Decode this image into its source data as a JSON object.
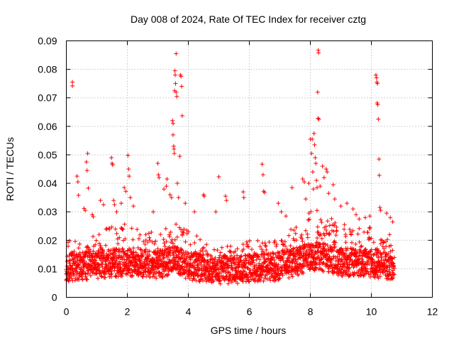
{
  "chart_data": {
    "type": "scatter",
    "title": "Day 008 of 2024, Rate Of TEC Index for receiver cztg",
    "xlabel": "GPS time / hours",
    "ylabel": "ROTI / TECUs",
    "xlim": [
      0,
      12
    ],
    "ylim": [
      0,
      0.09
    ],
    "xticks": [
      0,
      2,
      4,
      6,
      8,
      10,
      12
    ],
    "xtick_labels": [
      "0",
      "2",
      "4",
      "6",
      "8",
      "10",
      "12"
    ],
    "yticks": [
      0,
      0.01,
      0.02,
      0.03,
      0.04,
      0.05,
      0.06,
      0.07,
      0.08,
      0.09
    ],
    "ytick_labels": [
      "0",
      "0.01",
      "0.02",
      "0.03",
      "0.04",
      "0.05",
      "0.06",
      "0.07",
      "0.08",
      "0.09"
    ],
    "grid": true,
    "marker": "+",
    "color": "#ff0000",
    "series": [
      {
        "name": "ROTI",
        "points": [
          [
            0.2,
            0.0755
          ],
          [
            0.2,
            0.0742
          ],
          [
            0.35,
            0.0425
          ],
          [
            0.38,
            0.0405
          ],
          [
            0.4,
            0.0358
          ],
          [
            0.58,
            0.0312
          ],
          [
            0.62,
            0.0305
          ],
          [
            0.66,
            0.0475
          ],
          [
            0.68,
            0.0445
          ],
          [
            0.7,
            0.0505
          ],
          [
            0.72,
            0.0383
          ],
          [
            0.85,
            0.029
          ],
          [
            0.88,
            0.0283
          ],
          [
            1.12,
            0.034
          ],
          [
            1.22,
            0.0325
          ],
          [
            1.48,
            0.049
          ],
          [
            1.5,
            0.047
          ],
          [
            1.52,
            0.0465
          ],
          [
            1.55,
            0.034
          ],
          [
            1.58,
            0.0325
          ],
          [
            1.65,
            0.03
          ],
          [
            1.8,
            0.033
          ],
          [
            1.9,
            0.0385
          ],
          [
            1.95,
            0.0372
          ],
          [
            2.02,
            0.0498
          ],
          [
            2.04,
            0.045
          ],
          [
            2.06,
            0.0425
          ],
          [
            2.1,
            0.035
          ],
          [
            2.2,
            0.032
          ],
          [
            2.85,
            0.03
          ],
          [
            3.0,
            0.047
          ],
          [
            3.02,
            0.043
          ],
          [
            3.04,
            0.042
          ],
          [
            3.2,
            0.038
          ],
          [
            3.28,
            0.039
          ],
          [
            3.3,
            0.0415
          ],
          [
            3.4,
            0.036
          ],
          [
            3.45,
            0.035
          ],
          [
            3.48,
            0.062
          ],
          [
            3.5,
            0.061
          ],
          [
            3.5,
            0.057
          ],
          [
            3.52,
            0.053
          ],
          [
            3.53,
            0.052
          ],
          [
            3.54,
            0.0505
          ],
          [
            3.55,
            0.0725
          ],
          [
            3.56,
            0.0795
          ],
          [
            3.57,
            0.078
          ],
          [
            3.58,
            0.075
          ],
          [
            3.6,
            0.0855
          ],
          [
            3.6,
            0.072
          ],
          [
            3.62,
            0.0705
          ],
          [
            3.64,
            0.04
          ],
          [
            3.68,
            0.035
          ],
          [
            3.72,
            0.0495
          ],
          [
            3.74,
            0.078
          ],
          [
            3.76,
            0.0775
          ],
          [
            3.78,
            0.074
          ],
          [
            3.8,
            0.0637
          ],
          [
            3.9,
            0.033
          ],
          [
            4.2,
            0.03
          ],
          [
            4.5,
            0.036
          ],
          [
            4.52,
            0.0355
          ],
          [
            4.9,
            0.03
          ],
          [
            5.0,
            0.0423
          ],
          [
            5.22,
            0.0355
          ],
          [
            5.25,
            0.034
          ],
          [
            5.8,
            0.037
          ],
          [
            5.82,
            0.035
          ],
          [
            6.42,
            0.0467
          ],
          [
            6.45,
            0.043
          ],
          [
            6.47,
            0.0372
          ],
          [
            6.5,
            0.0368
          ],
          [
            6.95,
            0.033
          ],
          [
            7.05,
            0.03
          ],
          [
            7.2,
            0.0285
          ],
          [
            7.4,
            0.0385
          ],
          [
            7.75,
            0.0415
          ],
          [
            7.8,
            0.0405
          ],
          [
            7.85,
            0.0345
          ],
          [
            7.95,
            0.04
          ],
          [
            8.0,
            0.0555
          ],
          [
            8.04,
            0.0505
          ],
          [
            8.06,
            0.0555
          ],
          [
            8.08,
            0.044
          ],
          [
            8.1,
            0.038
          ],
          [
            8.12,
            0.0575
          ],
          [
            8.14,
            0.0535
          ],
          [
            8.16,
            0.049
          ],
          [
            8.18,
            0.047
          ],
          [
            8.2,
            0.041
          ],
          [
            8.22,
            0.0385
          ],
          [
            8.24,
            0.072
          ],
          [
            8.25,
            0.0628
          ],
          [
            8.26,
            0.0867
          ],
          [
            8.27,
            0.0858
          ],
          [
            8.28,
            0.0625
          ],
          [
            8.32,
            0.039
          ],
          [
            8.4,
            0.046
          ],
          [
            8.45,
            0.042
          ],
          [
            8.52,
            0.045
          ],
          [
            8.55,
            0.044
          ],
          [
            8.6,
            0.0365
          ],
          [
            8.75,
            0.0395
          ],
          [
            8.8,
            0.0345
          ],
          [
            9.0,
            0.032
          ],
          [
            9.2,
            0.033
          ],
          [
            9.4,
            0.031
          ],
          [
            9.5,
            0.029
          ],
          [
            9.6,
            0.0275
          ],
          [
            9.8,
            0.028
          ],
          [
            9.95,
            0.0285
          ],
          [
            10.15,
            0.078
          ],
          [
            10.17,
            0.077
          ],
          [
            10.18,
            0.0755
          ],
          [
            10.19,
            0.0682
          ],
          [
            10.2,
            0.075
          ],
          [
            10.21,
            0.0676
          ],
          [
            10.23,
            0.0625
          ],
          [
            10.25,
            0.0485
          ],
          [
            10.26,
            0.0428
          ],
          [
            10.28,
            0.0315
          ],
          [
            10.3,
            0.0305
          ],
          [
            10.5,
            0.0295
          ],
          [
            10.62,
            0.028
          ],
          [
            10.7,
            0.0265
          ]
        ]
      }
    ],
    "dense_band": {
      "description_note": "dense cloud of + markers between the listed x range",
      "x_start": 0.0,
      "x_end": 10.75,
      "step": 0.0125,
      "baseline_roti": [
        [
          0,
          0.0105
        ],
        [
          1,
          0.0115
        ],
        [
          2,
          0.0125
        ],
        [
          3,
          0.0115
        ],
        [
          3.6,
          0.013
        ],
        [
          4,
          0.011
        ],
        [
          5,
          0.0095
        ],
        [
          6,
          0.01
        ],
        [
          7,
          0.011
        ],
        [
          7.7,
          0.013
        ],
        [
          8.2,
          0.0145
        ],
        [
          9,
          0.0125
        ],
        [
          10,
          0.012
        ],
        [
          10.75,
          0.011
        ]
      ],
      "spread_roti": [
        [
          0,
          0.012
        ],
        [
          1.5,
          0.016
        ],
        [
          2,
          0.017
        ],
        [
          3,
          0.014
        ],
        [
          3.6,
          0.017
        ],
        [
          4.3,
          0.014
        ],
        [
          5,
          0.011
        ],
        [
          6,
          0.013
        ],
        [
          7,
          0.012
        ],
        [
          8,
          0.02
        ],
        [
          8.5,
          0.018
        ],
        [
          9.5,
          0.015
        ],
        [
          10.2,
          0.016
        ],
        [
          10.75,
          0.014
        ]
      ]
    }
  }
}
